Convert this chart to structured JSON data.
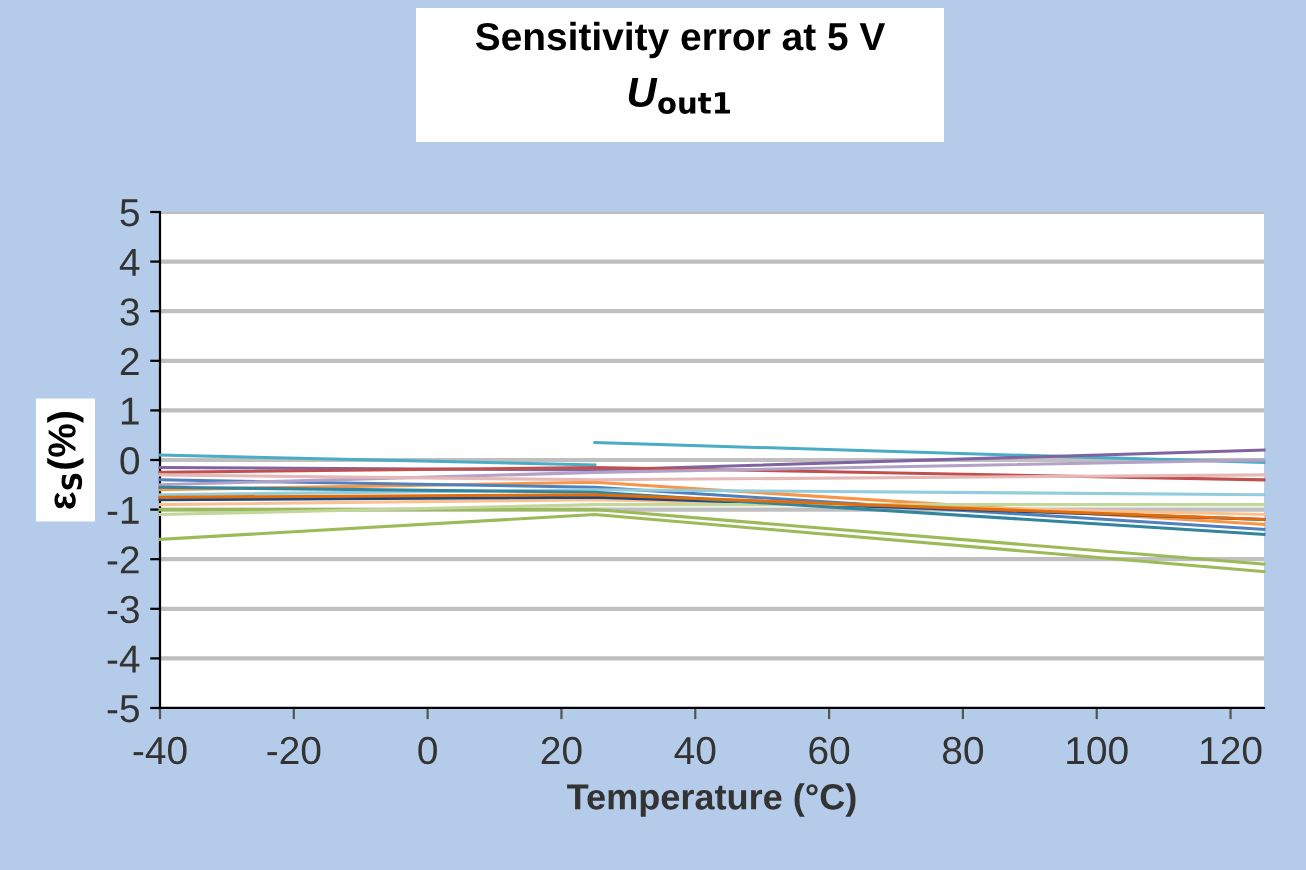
{
  "chart_data": {
    "type": "line",
    "title": "Sensitivity error at 5 V",
    "subtitle": "U$_{out1}$",
    "xlabel": "Temperature (°C)",
    "ylabel": "ε$_{S}$(%)",
    "xlim": [
      -40,
      125
    ],
    "xticks": [
      -40,
      -20,
      0,
      20,
      40,
      60,
      80,
      100,
      120
    ],
    "ylim": [
      -5,
      5
    ],
    "yticks": [
      -5,
      -4,
      -3,
      -2,
      -1,
      0,
      1,
      2,
      3,
      4,
      5
    ],
    "grid": "y",
    "legend": false,
    "series": [
      {
        "color": "#4bacc6",
        "x": [
          -40,
          25
        ],
        "values": [
          0.1,
          -0.1
        ]
      },
      {
        "color": "#4bacc6",
        "x": [
          25,
          125
        ],
        "values": [
          0.35,
          -0.05
        ]
      },
      {
        "color": "#8064a2",
        "x": [
          -40,
          25,
          125
        ],
        "values": [
          -0.15,
          -0.2,
          0.2
        ]
      },
      {
        "color": "#f79646",
        "x": [
          -40,
          25,
          125
        ],
        "values": [
          -0.6,
          -0.45,
          -1.3
        ]
      },
      {
        "color": "#4f81bd",
        "x": [
          -40,
          25,
          125
        ],
        "values": [
          -0.4,
          -0.55,
          -1.4
        ]
      },
      {
        "color": "#c0504d",
        "x": [
          -40,
          25,
          125
        ],
        "values": [
          -0.25,
          -0.15,
          -0.4
        ]
      },
      {
        "color": "#9bbb59",
        "x": [
          -40,
          25,
          125
        ],
        "values": [
          -1.6,
          -1.1,
          -2.25
        ]
      },
      {
        "color": "#9bbb59",
        "x": [
          -40,
          25,
          125
        ],
        "values": [
          -1.0,
          -1.0,
          -2.1
        ]
      },
      {
        "color": "#b3a2c7",
        "x": [
          -40,
          25,
          125
        ],
        "values": [
          -0.5,
          -0.25,
          0.0
        ]
      },
      {
        "color": "#93cddd",
        "x": [
          -40,
          25,
          125
        ],
        "values": [
          -0.7,
          -0.6,
          -0.7
        ]
      },
      {
        "color": "#fac090",
        "x": [
          -40,
          25,
          125
        ],
        "values": [
          -0.9,
          -0.8,
          -1.1
        ]
      },
      {
        "color": "#1f497d",
        "x": [
          -40,
          25,
          125
        ],
        "values": [
          -0.8,
          -0.75,
          -1.2
        ]
      },
      {
        "color": "#e6b9b8",
        "x": [
          -40,
          25,
          125
        ],
        "values": [
          -0.3,
          -0.4,
          -0.3
        ]
      },
      {
        "color": "#c3d69b",
        "x": [
          -40,
          25,
          125
        ],
        "values": [
          -1.1,
          -0.9,
          -0.9
        ]
      },
      {
        "color": "#31859c",
        "x": [
          -40,
          25,
          125
        ],
        "values": [
          -0.55,
          -0.65,
          -1.5
        ]
      },
      {
        "color": "#e46c0a",
        "x": [
          -40,
          25,
          125
        ],
        "values": [
          -0.75,
          -0.7,
          -1.2
        ]
      }
    ]
  }
}
